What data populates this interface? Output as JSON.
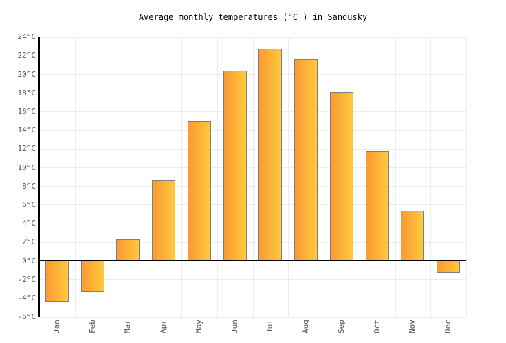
{
  "title": "Average monthly temperatures (°C ) in Sandusky",
  "chart_data": {
    "type": "bar",
    "title": "Average monthly temperatures (°C ) in Sandusky",
    "categories": [
      "Jan",
      "Feb",
      "Mar",
      "Apr",
      "May",
      "Jun",
      "Jul",
      "Aug",
      "Sep",
      "Oct",
      "Nov",
      "Dec"
    ],
    "values": [
      -4.4,
      -3.3,
      2.3,
      8.6,
      14.9,
      20.4,
      22.7,
      21.6,
      18.1,
      11.8,
      5.4,
      -1.3
    ],
    "unit": "°C",
    "ylim": [
      -6,
      24
    ],
    "ytick_step": 2,
    "ytick_labels": [
      "24°C",
      "22°C",
      "20°C",
      "18°C",
      "16°C",
      "14°C",
      "12°C",
      "10°C",
      "8°C",
      "6°C",
      "4°C",
      "2°C",
      "0°C",
      "-2°C",
      "-4°C",
      "-6°C"
    ],
    "grid": true,
    "legend": false,
    "colors": {
      "bar_gradient_left": "#FB9A34",
      "bar_gradient_right": "#FFC93C",
      "bar_border": "#7E7E7E",
      "axis_line": "#000000",
      "zero_line": "#000000",
      "gridline": "#ECECEC",
      "tick_label": "#545454",
      "title": "#000000"
    }
  }
}
